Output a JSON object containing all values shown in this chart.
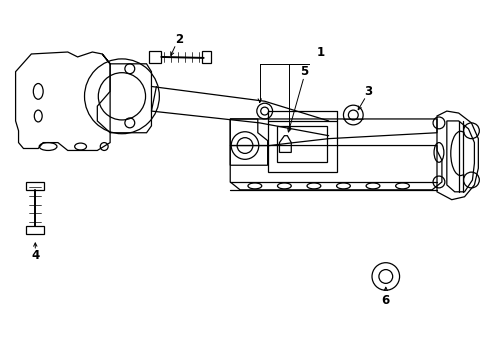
{
  "background_color": "#ffffff",
  "line_color": "#000000",
  "label_color": "#000000",
  "fig_width": 4.9,
  "fig_height": 3.6,
  "dpi": 100,
  "lw": 0.9,
  "label_fontsize": 8.5
}
